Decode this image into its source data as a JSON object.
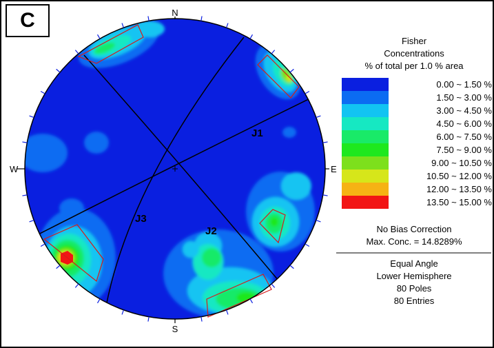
{
  "panel": {
    "label": "C"
  },
  "compass": {
    "north": "N",
    "south": "S",
    "east": "E",
    "west": "W"
  },
  "sets": {
    "j1": "J1",
    "j2": "J2",
    "j3": "J3"
  },
  "legend": {
    "title_lines": [
      "Fisher",
      "Concentrations",
      "% of total per 1.0 % area"
    ],
    "bins": [
      {
        "range": "0.00 ~  1.50 %",
        "color": "#0a1fe0"
      },
      {
        "range": "1.50 ~  3.00 %",
        "color": "#0b6cf2"
      },
      {
        "range": "3.00 ~  4.50 %",
        "color": "#12c4f2"
      },
      {
        "range": "4.50 ~  6.00 %",
        "color": "#16e8c2"
      },
      {
        "range": "6.00 ~  7.50 %",
        "color": "#19ea68"
      },
      {
        "range": "7.50 ~  9.00 %",
        "color": "#1ee81e"
      },
      {
        "range": "9.00 ~ 10.50 %",
        "color": "#7de01c"
      },
      {
        "range": "10.50 ~ 12.00 %",
        "color": "#d6e61a"
      },
      {
        "range": "12.00 ~ 13.50 %",
        "color": "#f6b214"
      },
      {
        "range": "13.50 ~ 15.00 %",
        "color": "#f21414"
      }
    ],
    "bias": "No Bias Correction",
    "max_conc": "Max. Conc. = 14.8289%",
    "projection": "Equal Angle",
    "hemisphere": "Lower Hemisphere",
    "poles": "80 Poles",
    "entries": "80 Entries"
  }
}
